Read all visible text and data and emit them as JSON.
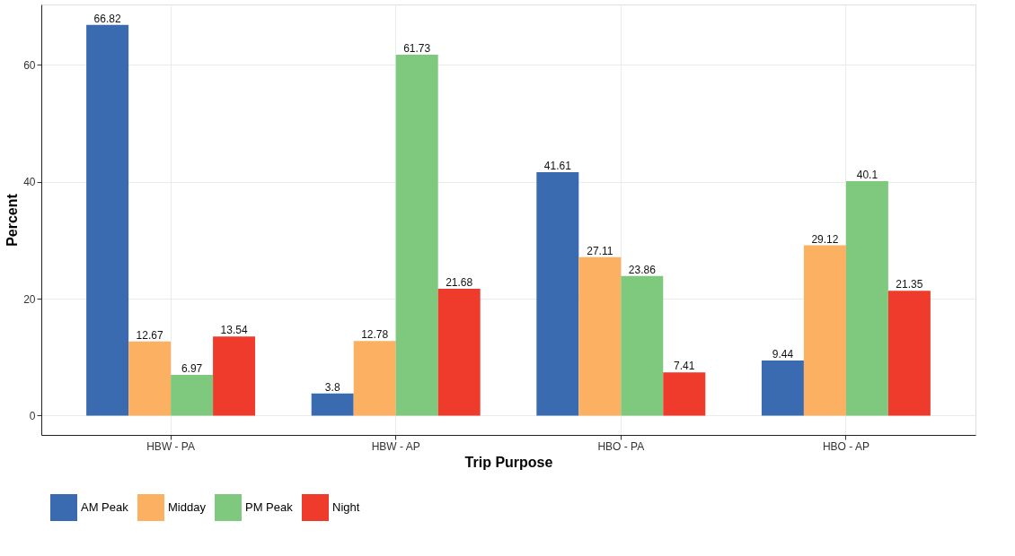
{
  "chart_data": {
    "type": "bar",
    "xlabel": "Trip Purpose",
    "ylabel": "Percent",
    "categories": [
      "HBW - PA",
      "HBW - AP",
      "HBO - PA",
      "HBO - AP"
    ],
    "series": [
      {
        "name": "AM Peak",
        "color": "#3a6bb0",
        "values": [
          66.82,
          3.8,
          41.61,
          9.44
        ]
      },
      {
        "name": "Midday",
        "color": "#fbb062",
        "values": [
          12.67,
          12.78,
          27.11,
          29.12
        ]
      },
      {
        "name": "PM Peak",
        "color": "#7fc97f",
        "values": [
          6.97,
          61.73,
          23.86,
          40.1
        ]
      },
      {
        "name": "Night",
        "color": "#ef3b2c",
        "values": [
          13.54,
          21.68,
          7.41,
          21.35
        ]
      }
    ],
    "ylim": [
      -3.3,
      70.3
    ],
    "yticks": [
      0,
      20,
      40,
      60
    ],
    "grid": true,
    "legend": "bottom",
    "data_labels": true
  }
}
